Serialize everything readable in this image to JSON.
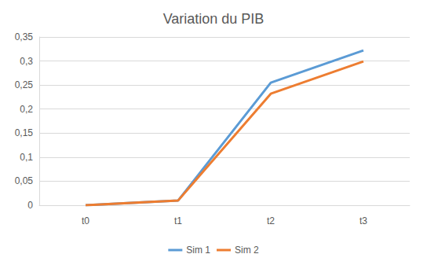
{
  "chart_data": {
    "type": "line",
    "title": "Variation du PIB",
    "categories": [
      "t0",
      "t1",
      "t2",
      "t3"
    ],
    "series": [
      {
        "name": "Sim 1",
        "color": "#5b9bd5",
        "values": [
          0,
          0.01,
          0.255,
          0.322
        ]
      },
      {
        "name": "Sim 2",
        "color": "#ed7d31",
        "values": [
          0,
          0.01,
          0.232,
          0.299
        ]
      }
    ],
    "ylim": [
      0,
      0.35
    ],
    "yticks": [
      0,
      {
        "value": 0.05,
        "label": "0,05"
      },
      {
        "value": 0.1,
        "label": "0,1"
      },
      {
        "value": 0.15,
        "label": "0,15"
      },
      {
        "value": 0.2,
        "label": "0,2"
      },
      {
        "value": 0.25,
        "label": "0,25"
      },
      {
        "value": 0.3,
        "label": "0,3"
      },
      {
        "value": 0.35,
        "label": "0,35"
      }
    ],
    "grid": true,
    "legend": "bottom"
  }
}
